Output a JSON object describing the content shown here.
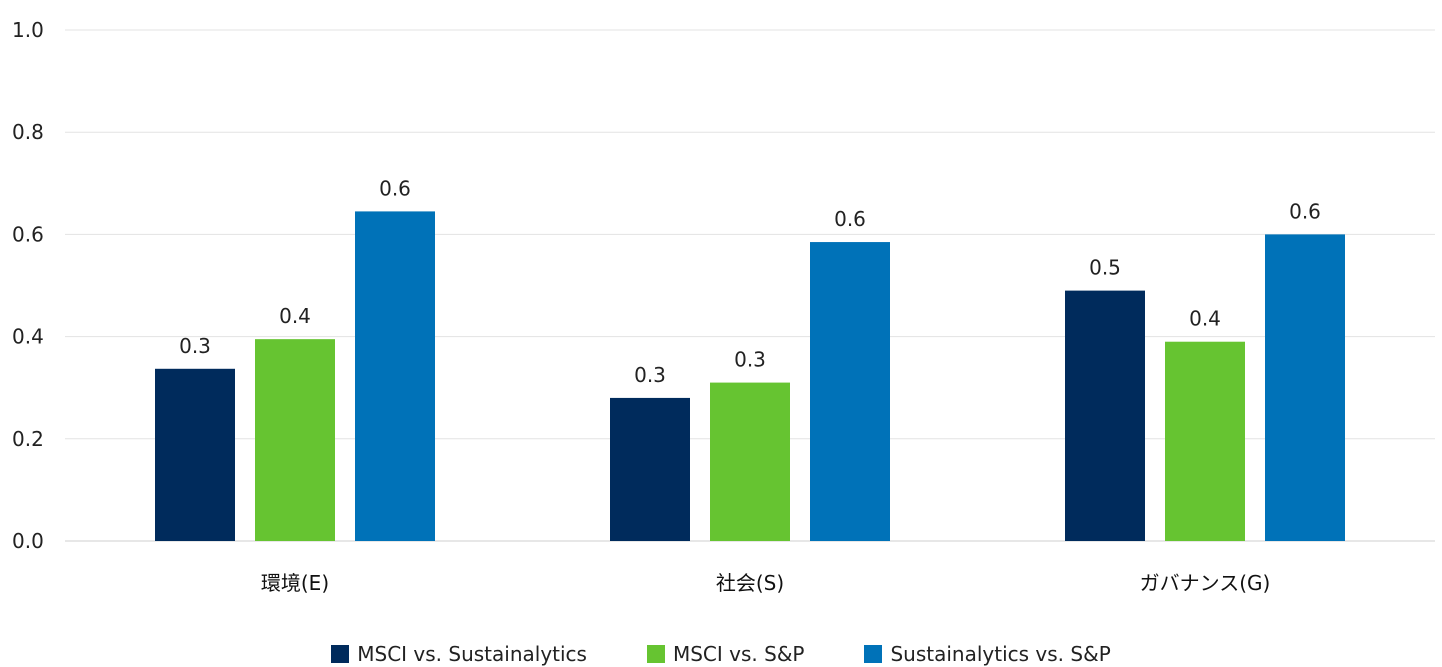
{
  "chart_data": {
    "type": "bar",
    "title": "",
    "xlabel": "",
    "ylabel": "",
    "ylim": [
      0,
      1.0
    ],
    "yticks": [
      "0.0",
      "0.2",
      "0.4",
      "0.6",
      "0.8",
      "1.0"
    ],
    "grid": true,
    "legend_position": "bottom",
    "categories": [
      "環境(E)",
      "社会(S)",
      "ガバナンス(G)"
    ],
    "series": [
      {
        "name": "MSCI vs. Sustainalytics",
        "color": "#002b5c",
        "values": [
          0.337,
          0.28,
          0.49
        ],
        "labels": [
          "0.3",
          "0.3",
          "0.5"
        ]
      },
      {
        "name": "MSCI vs. S&P",
        "color": "#66c431",
        "values": [
          0.395,
          0.31,
          0.39
        ],
        "labels": [
          "0.4",
          "0.3",
          "0.4"
        ]
      },
      {
        "name": "Sustainalytics vs. S&P",
        "color": "#0072b8",
        "values": [
          0.645,
          0.585,
          0.6
        ],
        "labels": [
          "0.6",
          "0.6",
          "0.6"
        ]
      }
    ]
  }
}
